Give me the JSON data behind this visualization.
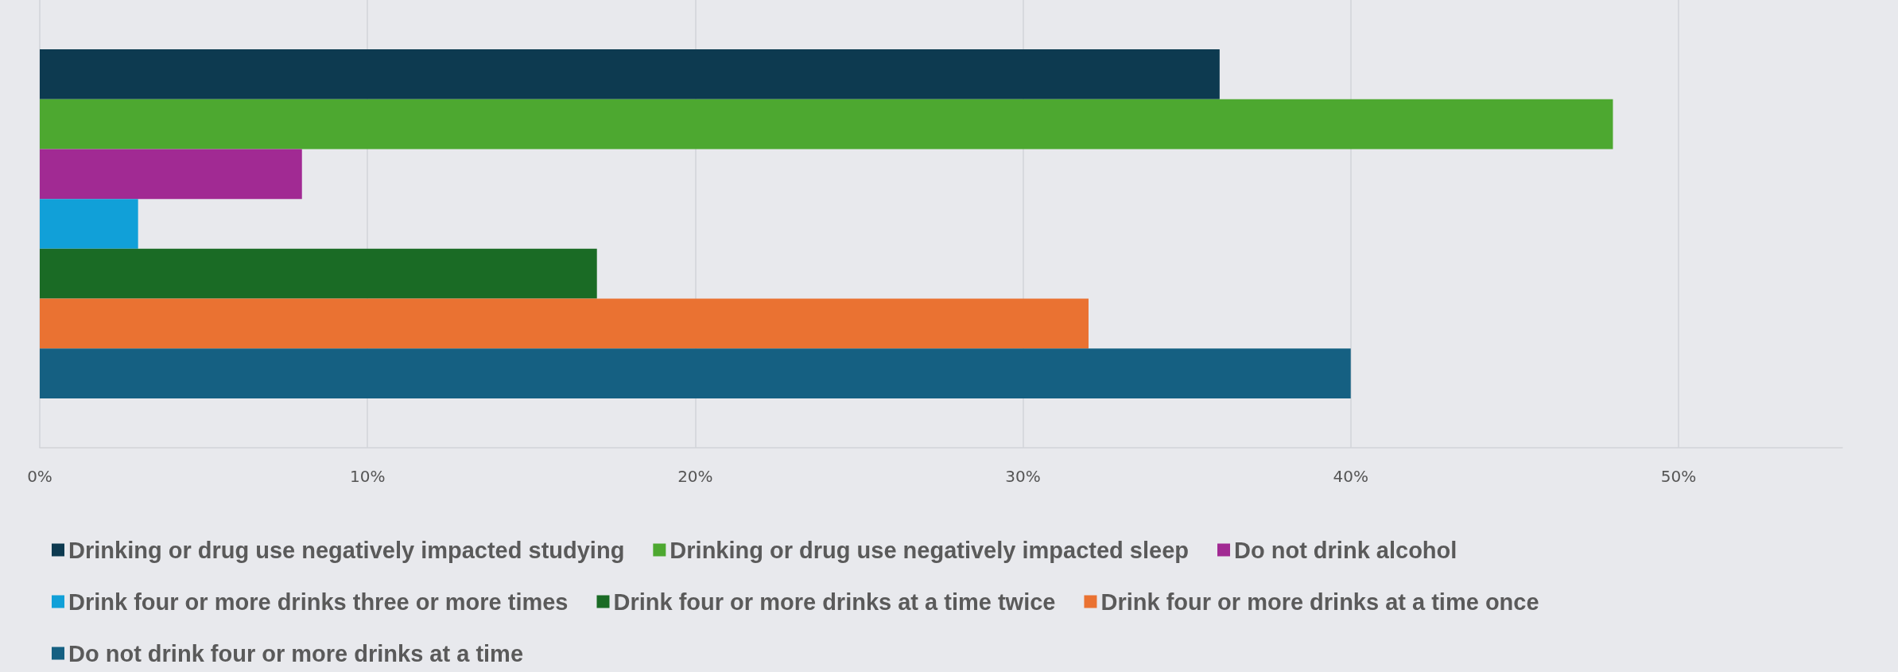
{
  "chart_data": {
    "type": "bar",
    "orientation": "horizontal",
    "categories": [
      null
    ],
    "series": [
      {
        "name": "Drinking or drug use negatively impacted studying",
        "color": "#0d3a50",
        "values": [
          36
        ]
      },
      {
        "name": "Drinking or drug use negatively impacted sleep",
        "color": "#4da830",
        "values": [
          48
        ]
      },
      {
        "name": "Do not drink alcohol",
        "color": "#a12a93",
        "values": [
          8
        ]
      },
      {
        "name": "Drink four or more drinks three or more times",
        "color": "#11a0d8",
        "values": [
          3
        ]
      },
      {
        "name": "Drink four or more drinks at a time twice",
        "color": "#1a6b25",
        "values": [
          17
        ]
      },
      {
        "name": "Drink four or more drinks at a time once",
        "color": "#ea7232",
        "values": [
          32
        ]
      },
      {
        "name": "Do not drink four or more drinks at a time",
        "color": "#156082",
        "values": [
          40
        ]
      }
    ],
    "xlim": [
      0,
      55
    ],
    "xticks": [
      {
        "value": 0,
        "label": "0%"
      },
      {
        "value": 10,
        "label": "10%"
      },
      {
        "value": 20,
        "label": "20%"
      },
      {
        "value": 30,
        "label": "30%"
      },
      {
        "value": 40,
        "label": "40%"
      },
      {
        "value": 50,
        "label": "50%"
      }
    ],
    "grid": "x",
    "legend": "bottom"
  }
}
